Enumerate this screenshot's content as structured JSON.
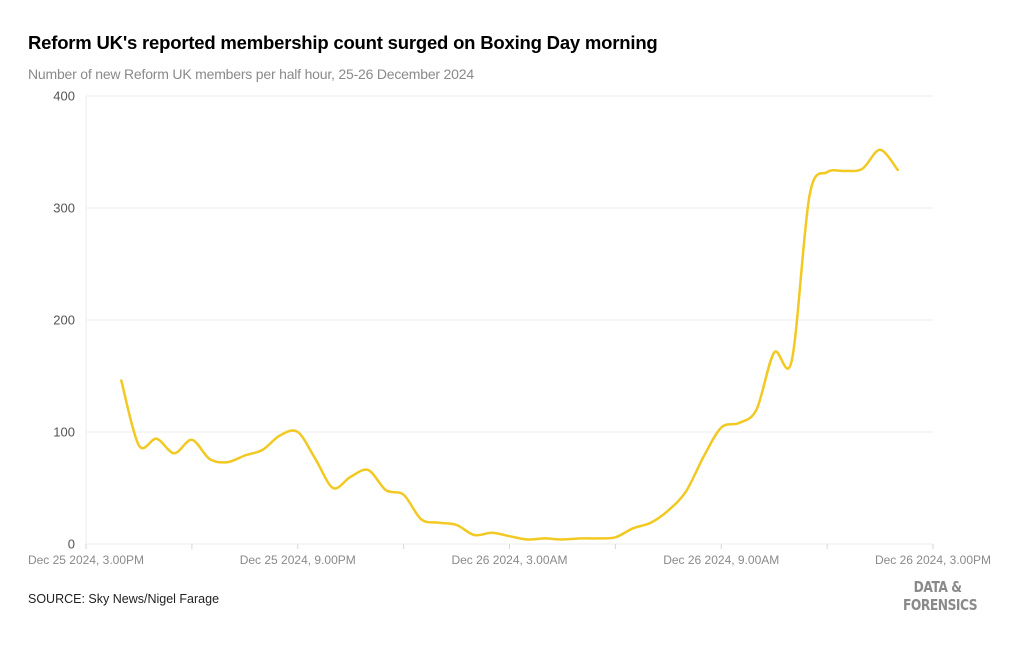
{
  "header": {
    "title": "Reform UK's reported membership count surged on Boxing Day morning",
    "subtitle": "Number of new Reform UK members per half hour, 25-26 December 2024"
  },
  "footer": {
    "source": "SOURCE: Sky News/Nigel Farage",
    "brand_line1": "DATA &",
    "brand_line2": "FORENSICS"
  },
  "colors": {
    "line": "#f2c923",
    "grid": "#ececec",
    "axis_text": "#8a8a8a"
  },
  "chart_data": {
    "type": "line",
    "title": "Reform UK's reported membership count surged on Boxing Day morning",
    "subtitle": "Number of new Reform UK members per half hour, 25-26 December 2024",
    "xlabel": "",
    "ylabel": "",
    "ylim": [
      0,
      400
    ],
    "yticks": [
      0,
      100,
      200,
      300,
      400
    ],
    "xlim": [
      "2024-12-25T15:00",
      "2024-12-26T15:00"
    ],
    "xticks": [
      {
        "value": "2024-12-25T15:00",
        "label": "Dec 25 2024, 3.00PM"
      },
      {
        "value": "2024-12-25T21:00",
        "label": "Dec 25 2024, 9.00PM"
      },
      {
        "value": "2024-12-26T03:00",
        "label": "Dec 26 2024, 3.00AM"
      },
      {
        "value": "2024-12-26T09:00",
        "label": "Dec 26 2024, 9.00AM"
      },
      {
        "value": "2024-12-26T15:00",
        "label": "Dec 26 2024, 3.00PM"
      }
    ],
    "grid": true,
    "legend": "none",
    "series": [
      {
        "color": "#f2c923",
        "x": [
          "2024-12-25T16:00",
          "2024-12-25T16:30",
          "2024-12-25T17:00",
          "2024-12-25T17:30",
          "2024-12-25T18:00",
          "2024-12-25T18:30",
          "2024-12-25T19:00",
          "2024-12-25T19:30",
          "2024-12-25T20:00",
          "2024-12-25T20:30",
          "2024-12-25T21:00",
          "2024-12-25T21:30",
          "2024-12-25T22:00",
          "2024-12-25T22:30",
          "2024-12-25T23:00",
          "2024-12-25T23:30",
          "2024-12-26T00:00",
          "2024-12-26T00:30",
          "2024-12-26T01:00",
          "2024-12-26T01:30",
          "2024-12-26T02:00",
          "2024-12-26T02:30",
          "2024-12-26T03:00",
          "2024-12-26T03:30",
          "2024-12-26T04:00",
          "2024-12-26T04:30",
          "2024-12-26T05:00",
          "2024-12-26T05:30",
          "2024-12-26T06:00",
          "2024-12-26T06:30",
          "2024-12-26T07:00",
          "2024-12-26T07:30",
          "2024-12-26T08:00",
          "2024-12-26T08:30",
          "2024-12-26T09:00",
          "2024-12-26T09:30",
          "2024-12-26T10:00",
          "2024-12-26T10:30",
          "2024-12-26T11:00",
          "2024-12-26T11:30",
          "2024-12-26T12:00",
          "2024-12-26T12:30",
          "2024-12-26T13:00",
          "2024-12-26T13:30",
          "2024-12-26T14:00"
        ],
        "values": [
          146,
          88,
          94,
          81,
          93,
          76,
          73,
          79,
          84,
          97,
          100,
          76,
          50,
          60,
          66,
          48,
          44,
          22,
          19,
          17,
          8,
          10,
          7,
          4,
          5,
          4,
          5,
          5,
          6,
          14,
          19,
          30,
          47,
          78,
          104,
          108,
          120,
          171,
          164,
          311,
          332,
          333,
          335,
          352,
          334
        ]
      }
    ]
  }
}
